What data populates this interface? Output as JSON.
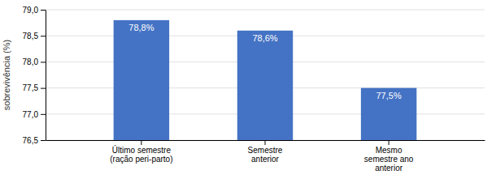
{
  "chart_data": {
    "type": "bar",
    "categories": [
      "Último semestre\n(ração peri-parto)",
      "Semestre\nanterior",
      "Mesmo\nsemestre ano\nanterior"
    ],
    "values": [
      78.8,
      78.6,
      77.5
    ],
    "value_labels": [
      "78,8%",
      "78,6%",
      "77,5%"
    ],
    "data_labels": true,
    "color": "#4472c4",
    "ylabel": "sobrevivência (%)",
    "ylim": [
      76.5,
      79.0
    ],
    "yticks": [
      {
        "value": 76.5,
        "label": "76,5"
      },
      {
        "value": 77.0,
        "label": "77,0"
      },
      {
        "value": 77.5,
        "label": "77,5"
      },
      {
        "value": 78.0,
        "label": "78,0"
      },
      {
        "value": 78.5,
        "label": "78,5"
      },
      {
        "value": 79.0,
        "label": "79,0"
      }
    ],
    "grid": true
  }
}
